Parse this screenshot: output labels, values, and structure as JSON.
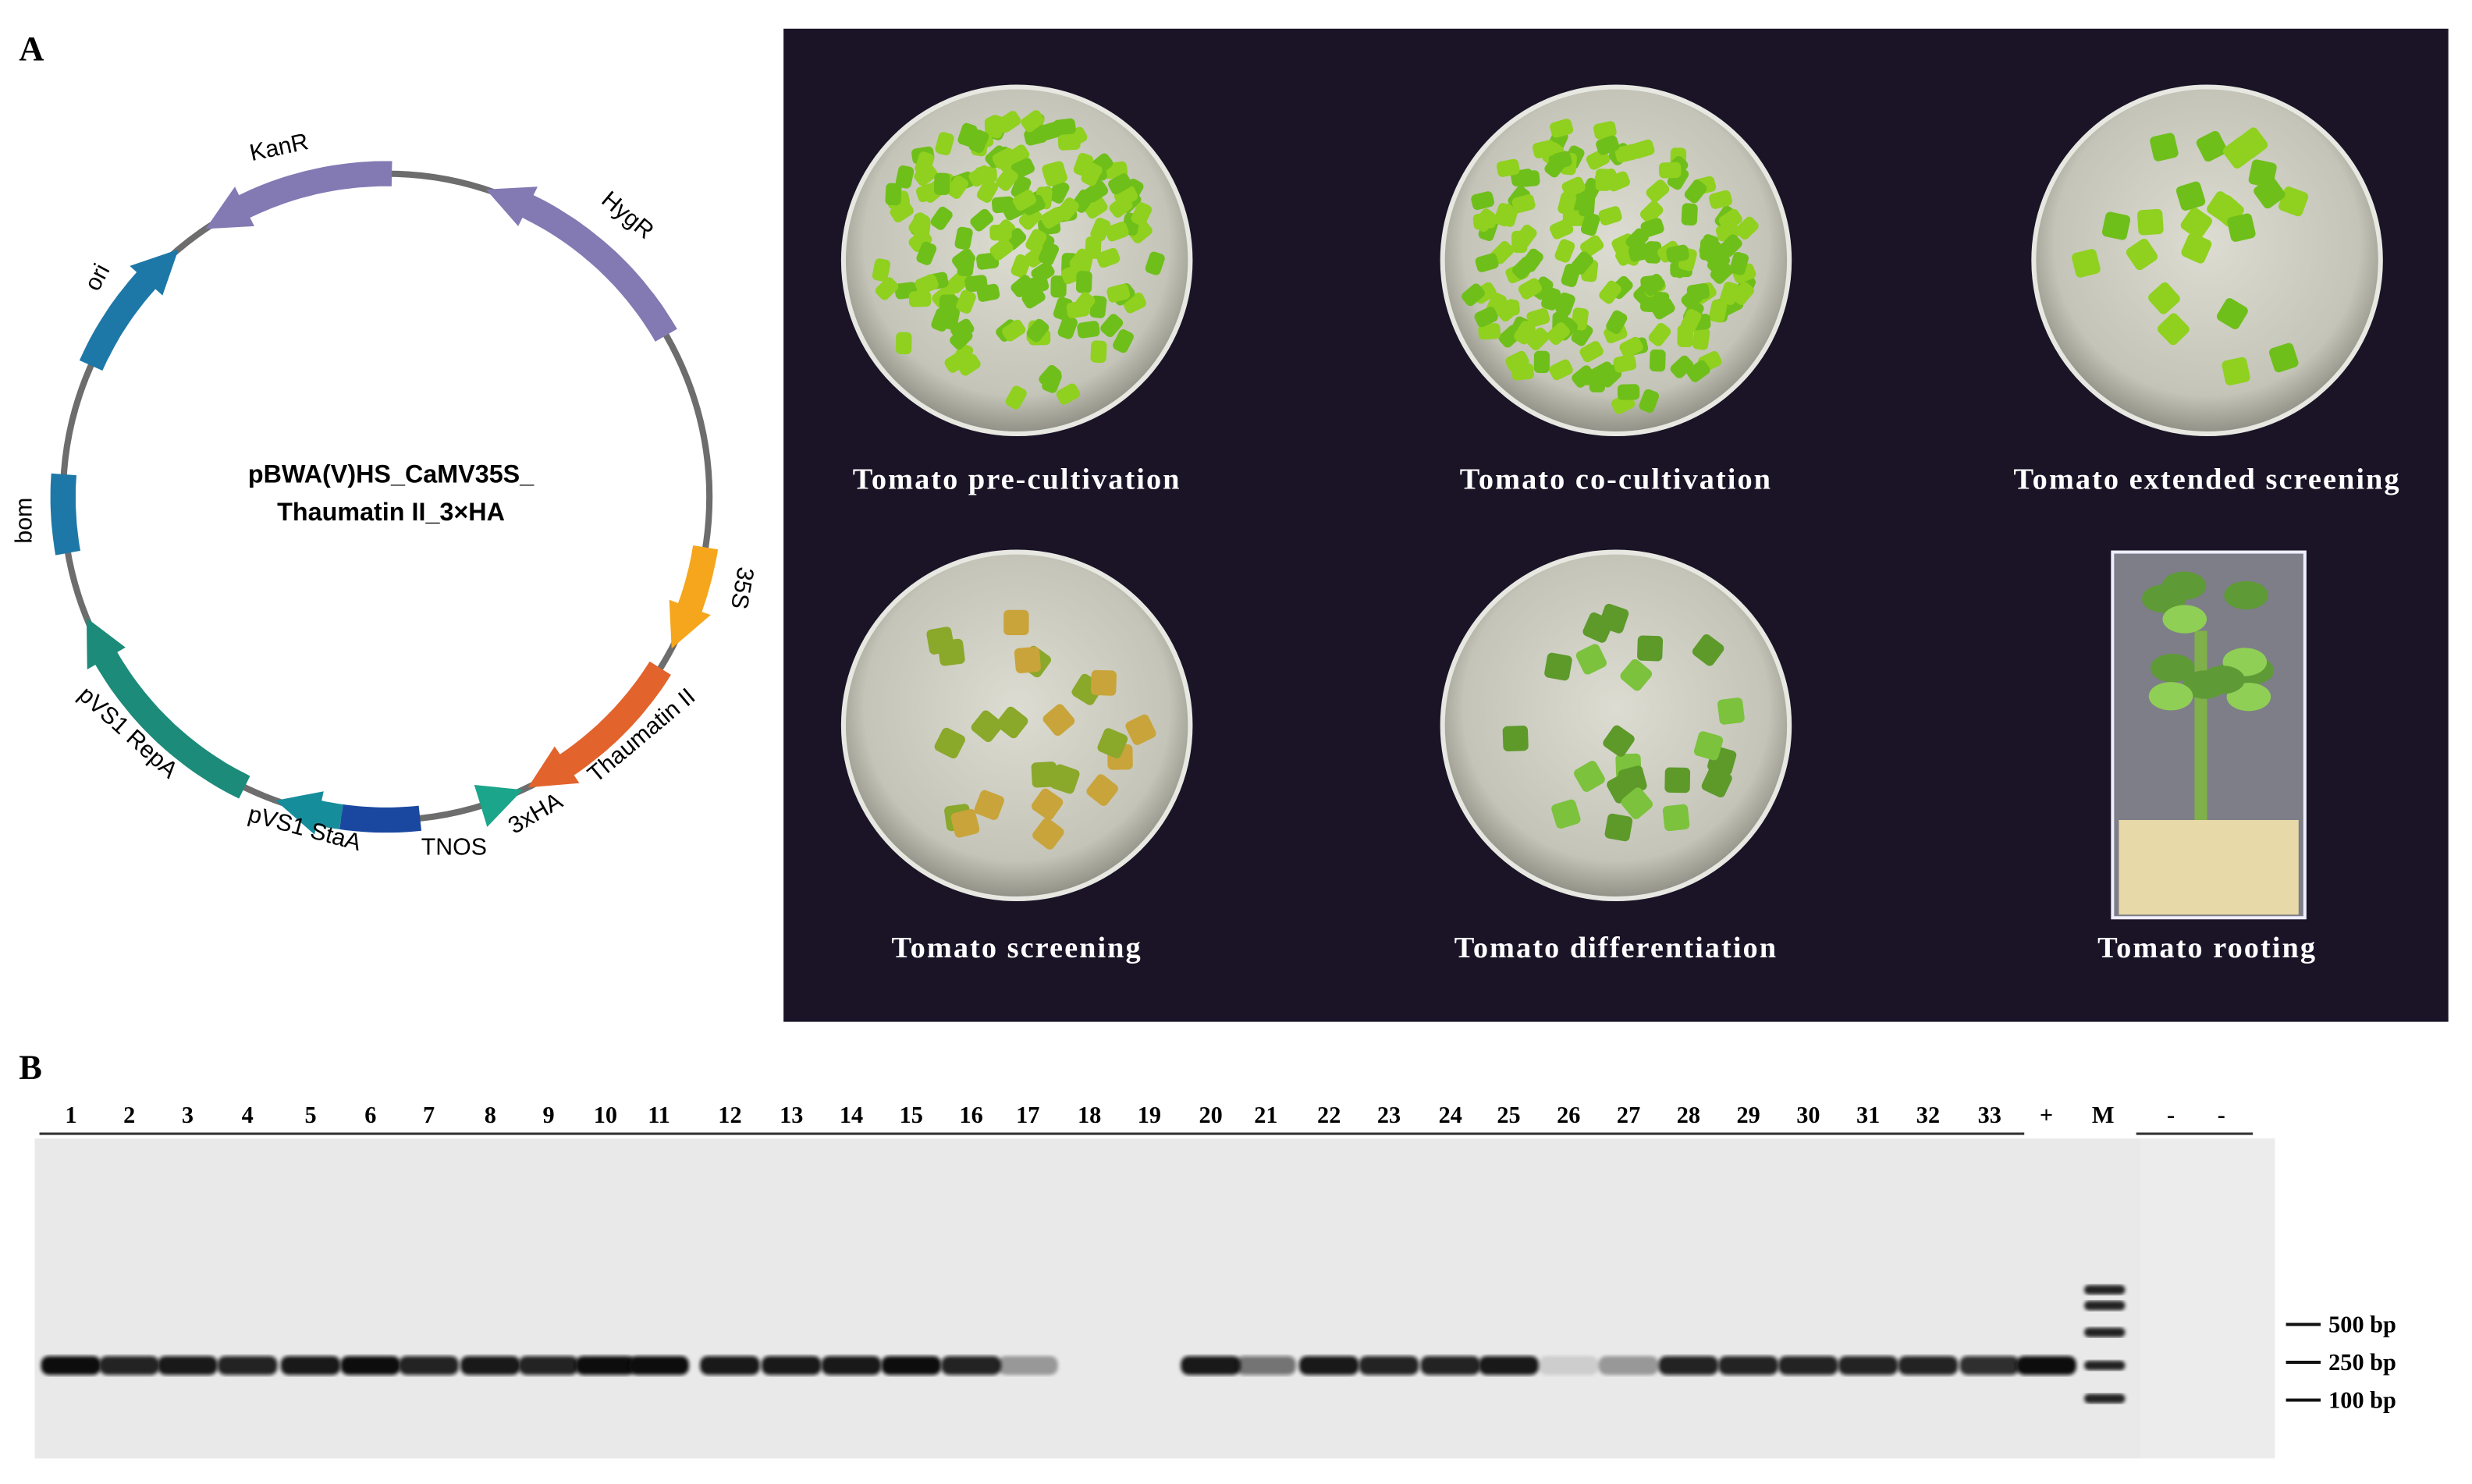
{
  "panel_a": {
    "label": "A",
    "plasmid": {
      "name_line1": "pBWA(V)HS_CaMV35S_",
      "name_line2": "Thaumatin II_3×HA",
      "features": [
        "KanR",
        "HygR",
        "ori",
        "bom",
        "35S",
        "Thaumatin II",
        "3xHA",
        "TNOS",
        "pVS1 StaA",
        "pVS1 RepA"
      ]
    },
    "photos": [
      "Tomato pre-cultivation",
      "Tomato co-cultivation",
      "Tomato extended screening",
      "Tomato screening",
      "Tomato differentiation",
      "Tomato rooting"
    ]
  },
  "panel_b": {
    "label": "B",
    "lanes": [
      "1",
      "2",
      "3",
      "4",
      "5",
      "6",
      "7",
      "8",
      "9",
      "10",
      "11",
      "12",
      "13",
      "14",
      "15",
      "16",
      "17",
      "18",
      "19",
      "20",
      "21",
      "22",
      "23",
      "24",
      "25",
      "26",
      "27",
      "28",
      "29",
      "30",
      "31",
      "32",
      "33",
      "+",
      "M",
      "-",
      "-"
    ],
    "markers": [
      "500 bp",
      "250 bp",
      "100 bp"
    ]
  }
}
